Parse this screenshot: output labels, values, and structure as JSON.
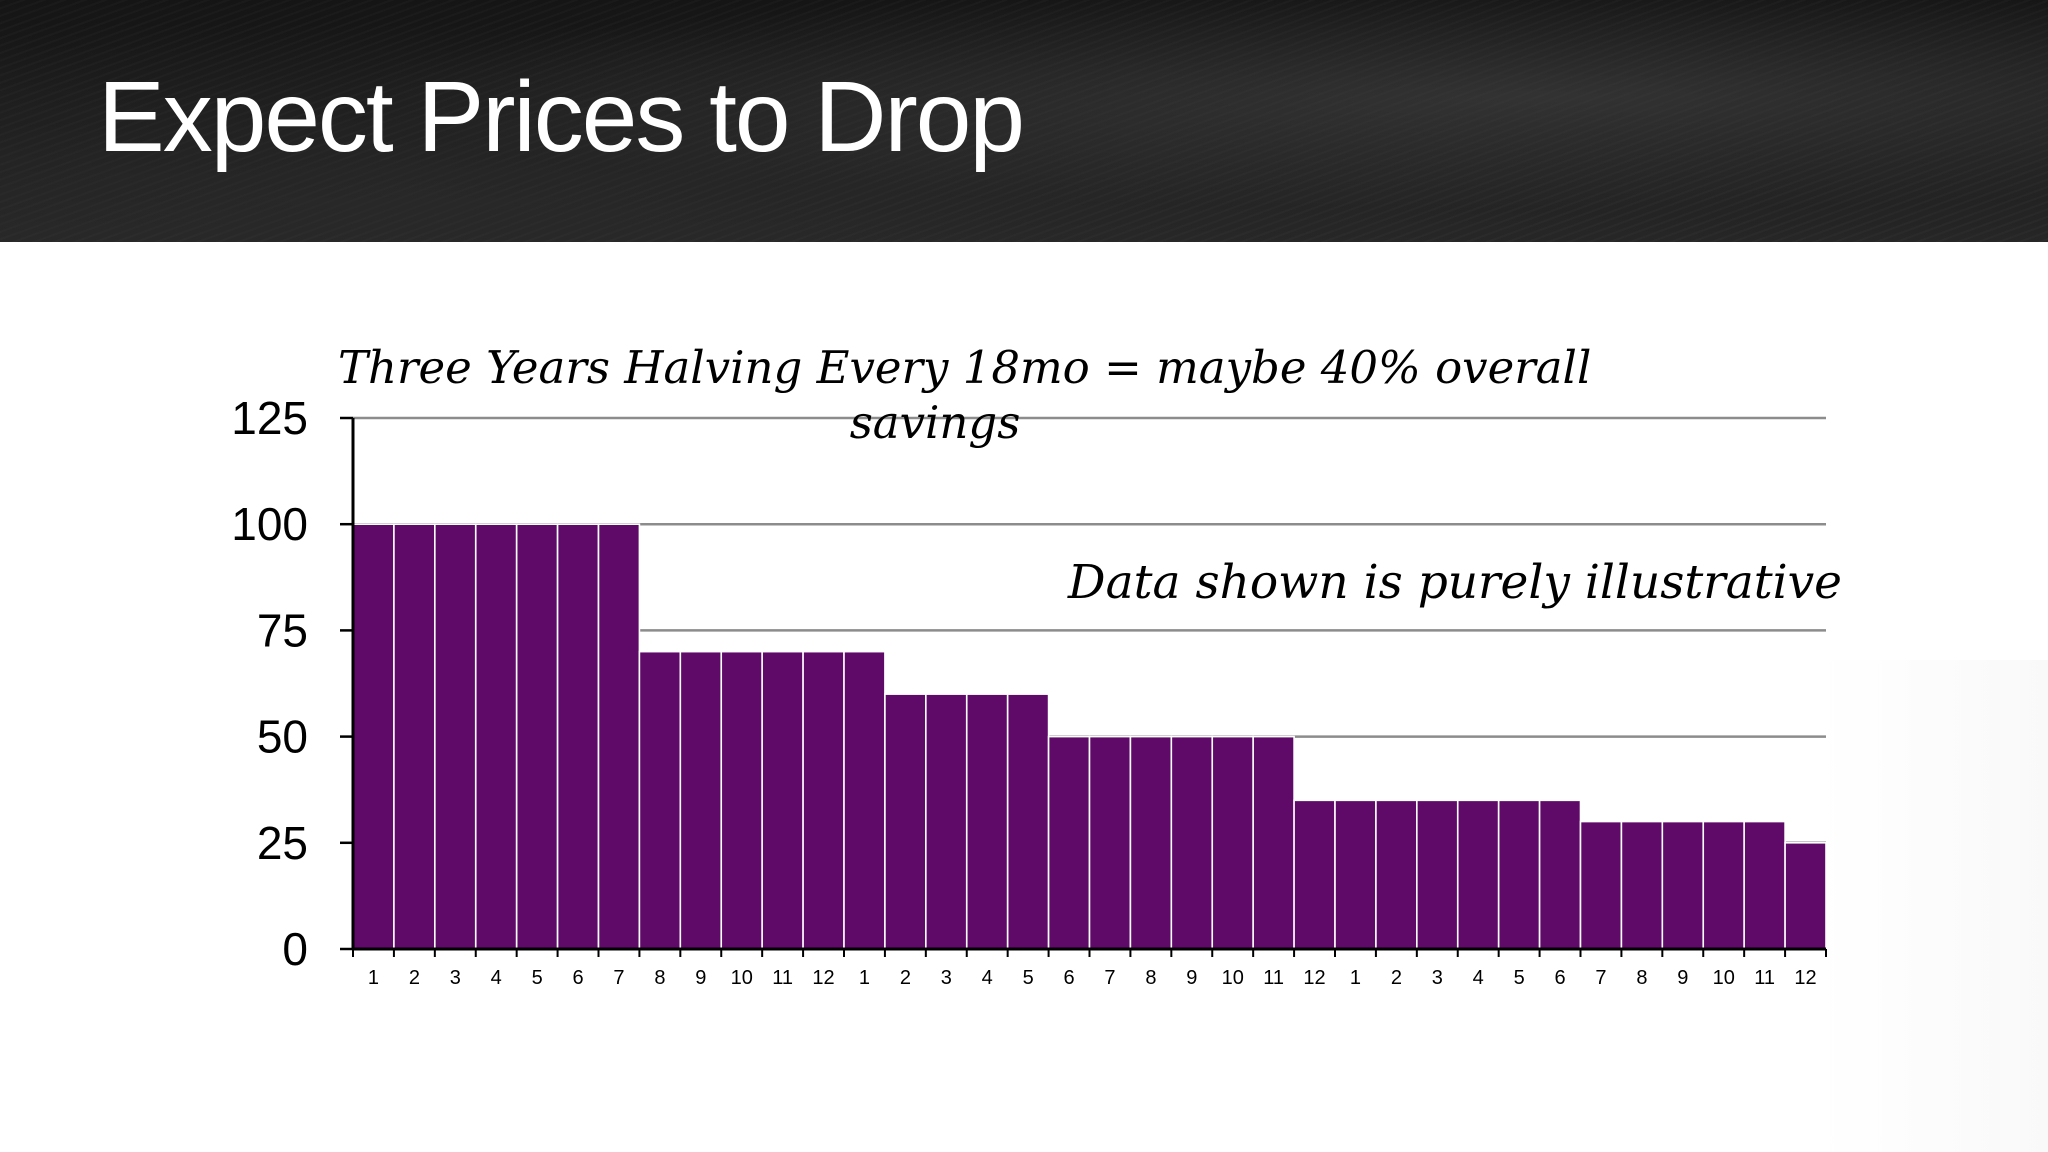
{
  "slide": {
    "title": "Expect Prices to Drop"
  },
  "colors": {
    "header_background": "#1b1b1b",
    "bar_fill": "#5f0a68",
    "bar_edge": "#ffffff",
    "gridline": "#8c8c8c",
    "axis": "#000000"
  },
  "chart_data": {
    "type": "bar",
    "title_lines": [
      "Three Years Halving Every 18mo = maybe 40% overall",
      "savings"
    ],
    "annotation": "Data shown is purely illustrative",
    "categories": [
      "1",
      "2",
      "3",
      "4",
      "5",
      "6",
      "7",
      "8",
      "9",
      "10",
      "11",
      "12",
      "1",
      "2",
      "3",
      "4",
      "5",
      "6",
      "7",
      "8",
      "9",
      "10",
      "11",
      "12",
      "1",
      "2",
      "3",
      "4",
      "5",
      "6",
      "7",
      "8",
      "9",
      "10",
      "11",
      "12"
    ],
    "values": [
      100,
      100,
      100,
      100,
      100,
      100,
      100,
      70,
      70,
      70,
      70,
      70,
      70,
      60,
      60,
      60,
      60,
      50,
      50,
      50,
      50,
      50,
      50,
      35,
      35,
      35,
      35,
      35,
      35,
      35,
      30,
      30,
      30,
      30,
      30,
      25
    ],
    "ylim": [
      0,
      125
    ],
    "yticks": [
      "0",
      "25",
      "50",
      "75",
      "100",
      "125"
    ],
    "ytick_values": [
      0,
      25,
      50,
      75,
      100,
      125
    ],
    "xlabel": "",
    "ylabel": "",
    "grid": true,
    "legend": "none"
  }
}
